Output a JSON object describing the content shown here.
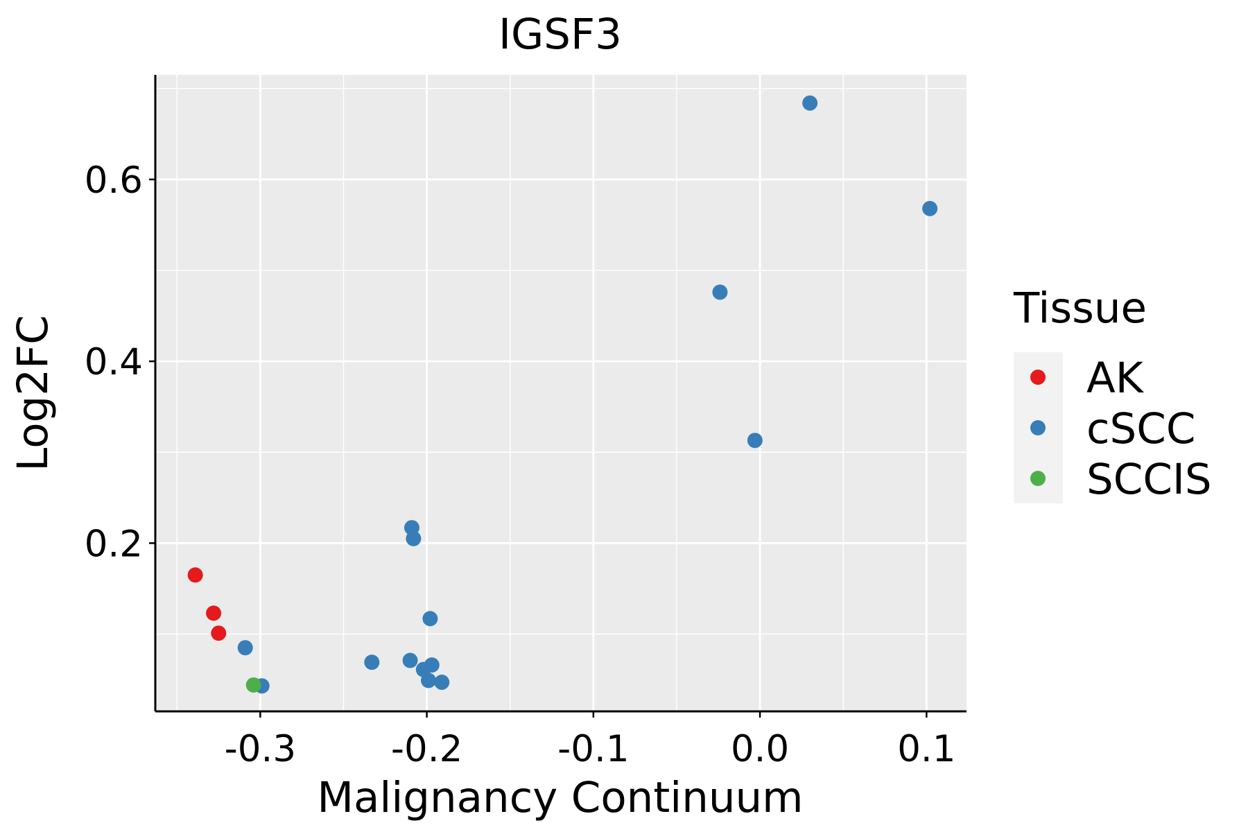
{
  "chart_data": {
    "type": "scatter",
    "title": "IGSF3",
    "xlabel": "Malignancy Continuum",
    "ylabel": "Log2FC",
    "xlim": [
      -0.363,
      0.124
    ],
    "ylim": [
      0.015,
      0.715
    ],
    "x_ticks": [
      -0.3,
      -0.2,
      -0.1,
      0.0,
      0.1
    ],
    "x_tick_labels": [
      "-0.3",
      "-0.2",
      "-0.1",
      "0.0",
      "0.1"
    ],
    "y_ticks": [
      0.2,
      0.4,
      0.6
    ],
    "y_tick_labels": [
      "0.2",
      "0.4",
      "0.6"
    ],
    "grid": true,
    "panel_background": "#EBEBEB",
    "legend": {
      "title": "Tissue",
      "position": "right",
      "entries": [
        {
          "label": "AK",
          "color": "#E41A1C"
        },
        {
          "label": "cSCC",
          "color": "#377EB8"
        },
        {
          "label": "SCCIS",
          "color": "#4DAF4A"
        }
      ]
    },
    "series": [
      {
        "name": "AK",
        "color": "#E41A1C",
        "points": [
          [
            -0.339,
            0.165
          ],
          [
            -0.328,
            0.123
          ],
          [
            -0.325,
            0.101
          ]
        ]
      },
      {
        "name": "cSCC",
        "color": "#377EB8",
        "points": [
          [
            0.03,
            0.684
          ],
          [
            0.102,
            0.568
          ],
          [
            -0.024,
            0.476
          ],
          [
            -0.003,
            0.313
          ],
          [
            -0.209,
            0.217
          ],
          [
            -0.208,
            0.205
          ],
          [
            -0.198,
            0.117
          ],
          [
            -0.309,
            0.085
          ],
          [
            -0.233,
            0.069
          ],
          [
            -0.21,
            0.071
          ],
          [
            -0.197,
            0.066
          ],
          [
            -0.202,
            0.061
          ],
          [
            -0.199,
            0.049
          ],
          [
            -0.191,
            0.047
          ],
          [
            -0.299,
            0.043
          ]
        ]
      },
      {
        "name": "SCCIS",
        "color": "#4DAF4A",
        "points": [
          [
            -0.304,
            0.044
          ]
        ]
      }
    ]
  }
}
